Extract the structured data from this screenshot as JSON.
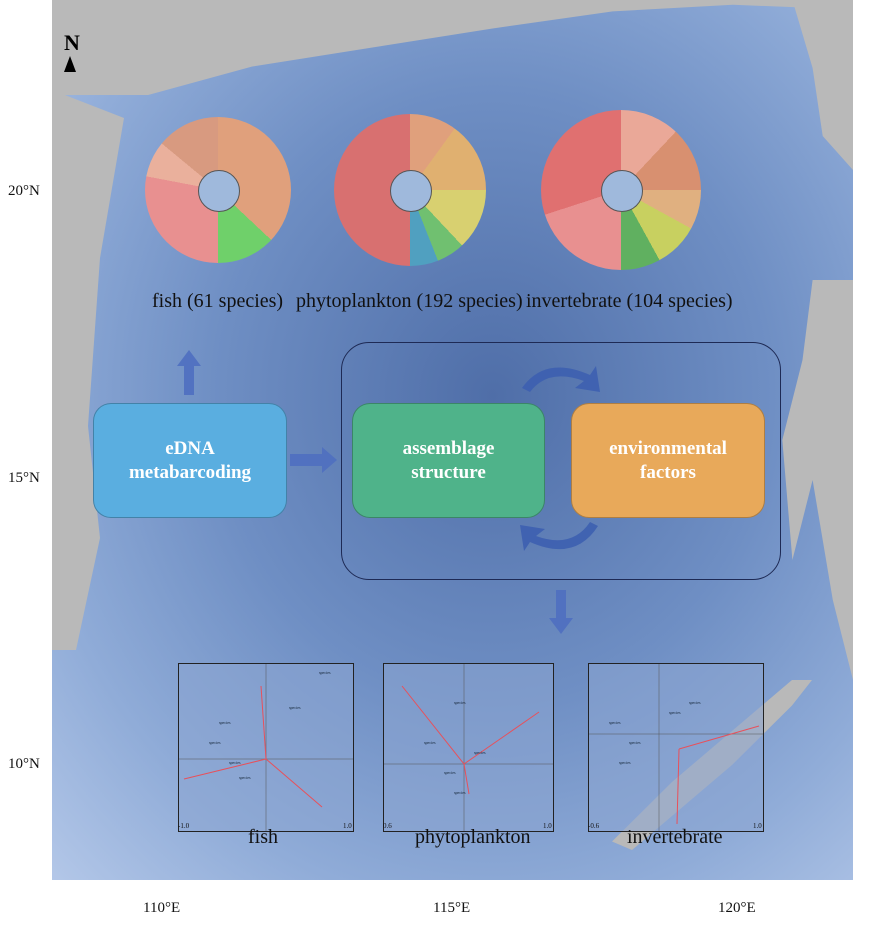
{
  "map": {
    "north_label": "N",
    "lat_ticks": [
      "20°N",
      "15°N",
      "10°N"
    ],
    "lon_ticks": [
      "110°E",
      "115°E",
      "120°E"
    ]
  },
  "sunbursts": [
    {
      "label": "fish (61 species)"
    },
    {
      "label": "phytoplankton (192 species)"
    },
    {
      "label": "invertebrate (104 species)"
    }
  ],
  "workflow": {
    "edna": "eDNA metabarcoding",
    "assemblage": "assemblage structure",
    "environment": "environmental factors"
  },
  "ordinations": [
    {
      "label": "fish",
      "axis": [
        "-1.0",
        "1.0"
      ]
    },
    {
      "label": "phytoplankton",
      "axis": [
        "0.6",
        "1.0"
      ]
    },
    {
      "label": "invertebrate",
      "axis": [
        "-0.6",
        "1.0"
      ]
    }
  ],
  "colors": {
    "edna": "#5aaee0",
    "assemblage": "#4fb38a",
    "environment": "#e8a95a",
    "arrow": "#4f6fc0",
    "env_vector": "#e8505a"
  }
}
